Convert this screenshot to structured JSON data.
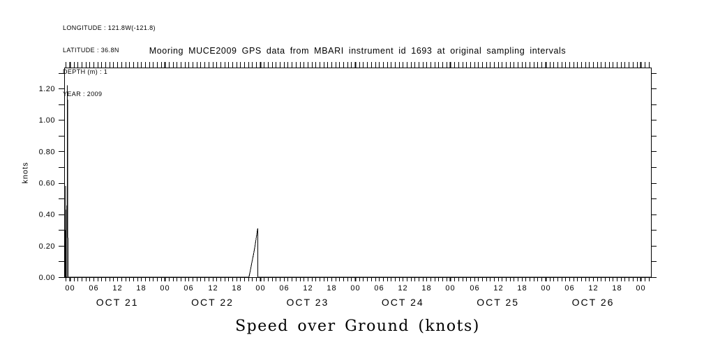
{
  "colors": {
    "foreground": "#000000",
    "background": "#ffffff"
  },
  "meta": {
    "lines": [
      "LONGITUDE : 121.8W(-121.8)",
      "LATITUDE : 36.8N",
      "DEPTH (m) : 1",
      "YEAR : 2009"
    ]
  },
  "chart_data": {
    "type": "line",
    "title": "Mooring MUCE2009 GPS data from MBARI instrument id 1693 at original sampling intervals",
    "bottom_title": "Speed over Ground (knots)",
    "ylabel": "knots",
    "line_color": "#000000",
    "background": "#ffffff",
    "grid": false,
    "legend": false,
    "x_unit": "hours since OCT 21 2009 00:00",
    "xlim": [
      -1.4,
      146.6
    ],
    "ylim": [
      0,
      1.3333
    ],
    "x_minor_tick_hours": 1,
    "x_label_every_hours": 6,
    "x_day_tick_hours": 24,
    "x_label_max_hour": 144,
    "hour_label_cycle": [
      "00",
      "06",
      "12",
      "18"
    ],
    "date_labels": [
      {
        "label": "OCT 21",
        "hour": 12
      },
      {
        "label": "OCT 22",
        "hour": 36
      },
      {
        "label": "OCT 23",
        "hour": 60
      },
      {
        "label": "OCT 24",
        "hour": 84
      },
      {
        "label": "OCT 25",
        "hour": 108
      },
      {
        "label": "OCT 26",
        "hour": 132
      }
    ],
    "y_minor_step": 0.1,
    "y_major_ticks": [
      {
        "value": 0.0,
        "label": "0.00"
      },
      {
        "value": 0.2,
        "label": "0.20"
      },
      {
        "value": 0.4,
        "label": "0.40"
      },
      {
        "value": 0.6,
        "label": "0.60"
      },
      {
        "value": 0.8,
        "label": "0.80"
      },
      {
        "value": 1.0,
        "label": "1.00"
      },
      {
        "value": 1.2,
        "label": "1.20"
      }
    ],
    "series": [
      {
        "name": "speed-over-ground",
        "points": [
          [
            -1.4,
            0.0
          ],
          [
            -1.15,
            0.0
          ],
          [
            -1.03,
            0.58
          ],
          [
            -0.93,
            0.0
          ],
          [
            -0.7,
            0.0
          ],
          [
            -0.57,
            1.22
          ],
          [
            -0.45,
            0.0
          ],
          [
            45.2,
            0.0
          ],
          [
            45.6,
            0.05
          ],
          [
            46.0,
            0.1
          ],
          [
            46.4,
            0.15
          ],
          [
            46.8,
            0.21
          ],
          [
            47.1,
            0.26
          ],
          [
            47.4,
            0.31
          ],
          [
            47.45,
            0.0
          ],
          [
            146.6,
            0.0
          ]
        ]
      }
    ]
  }
}
